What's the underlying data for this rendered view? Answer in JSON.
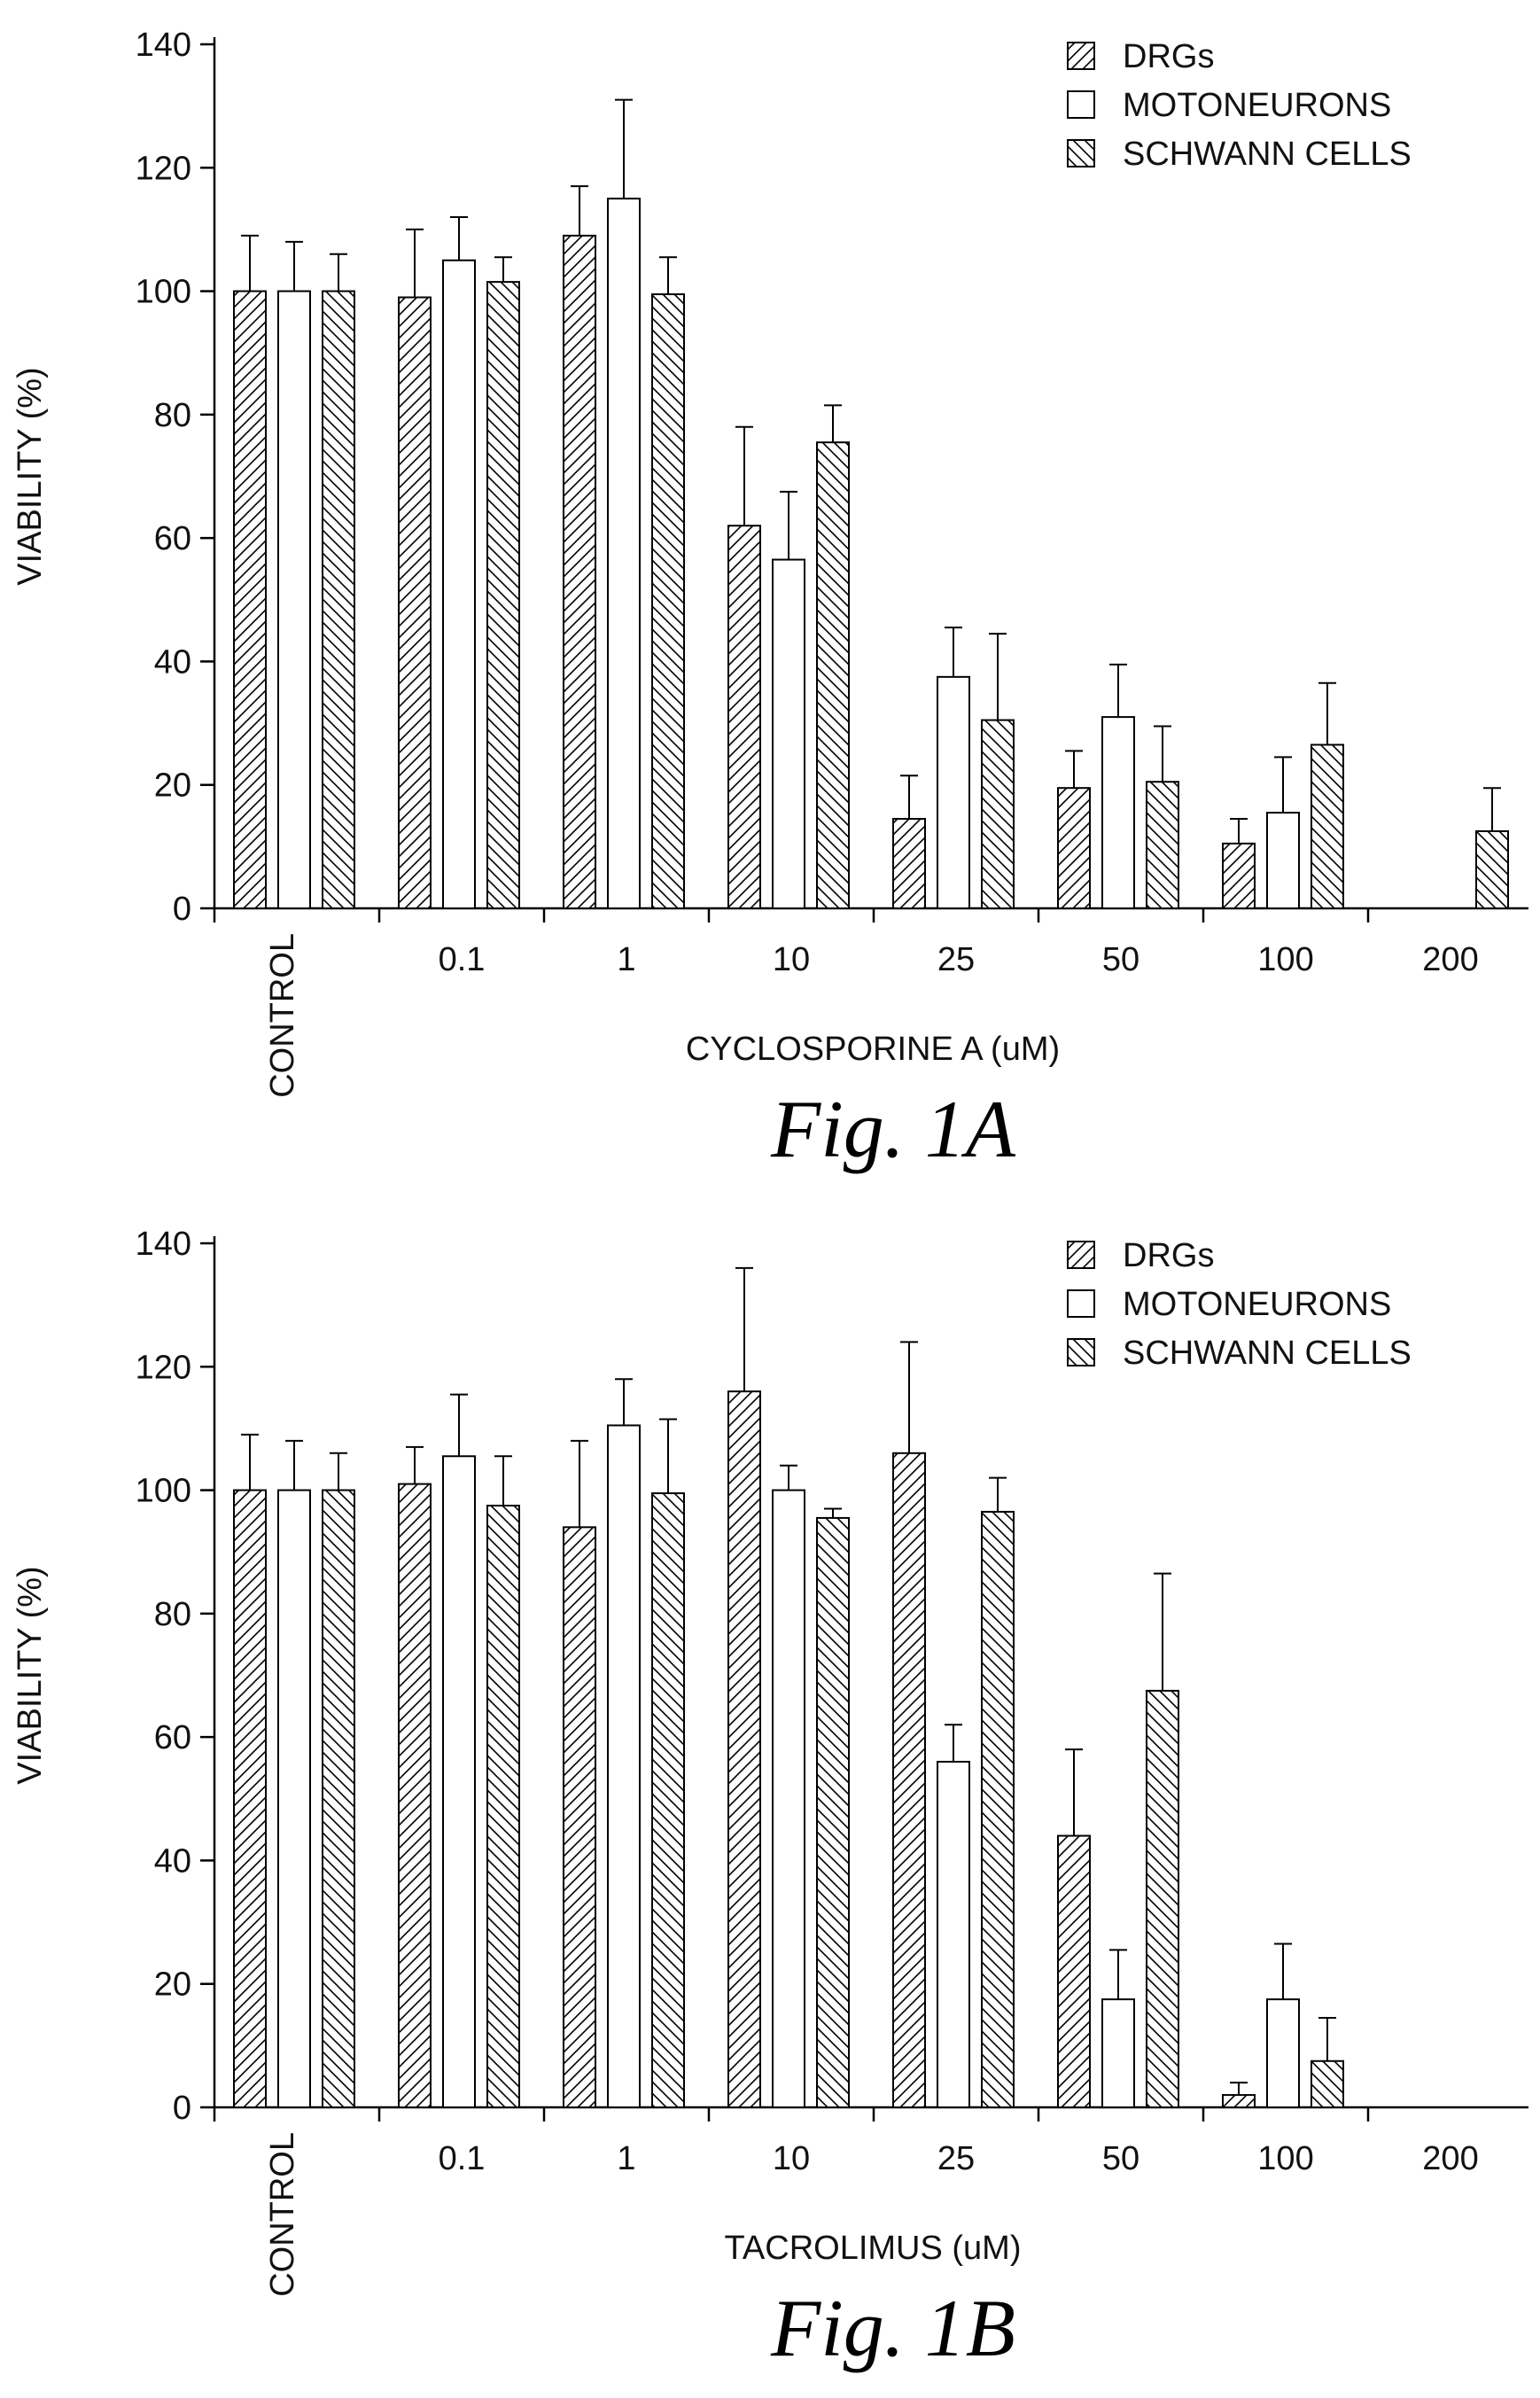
{
  "chart_data": [
    {
      "type": "bar",
      "caption": "Fig.  1A",
      "xlabel": "CYCLOSPORINE A (uM)",
      "ylabel": "VIABILITY (%)",
      "ylim": [
        0,
        140
      ],
      "yticks": [
        0,
        20,
        40,
        60,
        80,
        100,
        120,
        140
      ],
      "categories": [
        "CONTROL",
        "0.1",
        "1",
        "10",
        "25",
        "50",
        "100",
        "200"
      ],
      "legend_position": "top-right",
      "series": [
        {
          "name": "DRGs",
          "pattern": "hatch-forward",
          "values": [
            100,
            99,
            109,
            62,
            14.5,
            19.5,
            10.5,
            null
          ],
          "errors": [
            9,
            11,
            8,
            16,
            7,
            6,
            4,
            null
          ]
        },
        {
          "name": "MOTONEURONS",
          "pattern": "open",
          "values": [
            100,
            105,
            115,
            56.5,
            37.5,
            31,
            15.5,
            null
          ],
          "errors": [
            8,
            7,
            16,
            11,
            8,
            8.5,
            9,
            null
          ]
        },
        {
          "name": "SCHWANN CELLS",
          "pattern": "hatch-back",
          "values": [
            100,
            101.5,
            99.5,
            75.5,
            30.5,
            20.5,
            26.5,
            12.5
          ],
          "errors": [
            6,
            4,
            6,
            6,
            14,
            9,
            10,
            7
          ]
        }
      ]
    },
    {
      "type": "bar",
      "caption": "Fig.  1B",
      "xlabel": "TACROLIMUS (uM)",
      "ylabel": "VIABILITY (%)",
      "ylim": [
        0,
        140
      ],
      "yticks": [
        0,
        20,
        40,
        60,
        80,
        100,
        120,
        140
      ],
      "categories": [
        "CONTROL",
        "0.1",
        "1",
        "10",
        "25",
        "50",
        "100",
        "200"
      ],
      "legend_position": "top-right",
      "series": [
        {
          "name": "DRGs",
          "pattern": "hatch-forward",
          "values": [
            100,
            101,
            94,
            116,
            106,
            44,
            2,
            null
          ],
          "errors": [
            9,
            6,
            14,
            20,
            18,
            14,
            2,
            null
          ]
        },
        {
          "name": "MOTONEURONS",
          "pattern": "open",
          "values": [
            100,
            105.5,
            110.5,
            100,
            56,
            17.5,
            17.5,
            null
          ],
          "errors": [
            8,
            10,
            7.5,
            4,
            6,
            8,
            9,
            null
          ]
        },
        {
          "name": "SCHWANN CELLS",
          "pattern": "hatch-back",
          "values": [
            100,
            97.5,
            99.5,
            95.5,
            96.5,
            67.5,
            7.5,
            null
          ],
          "errors": [
            6,
            8,
            12,
            1.5,
            5.5,
            19,
            7,
            null
          ]
        }
      ]
    }
  ]
}
